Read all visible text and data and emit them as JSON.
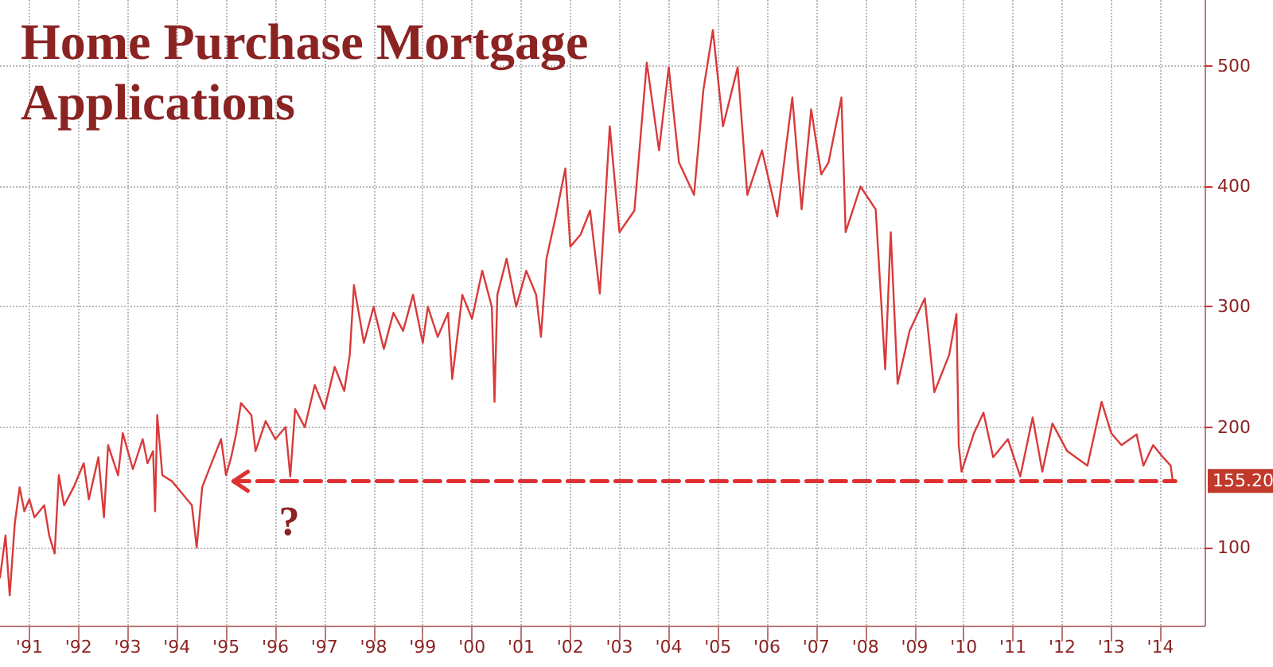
{
  "chart_data": {
    "type": "line",
    "title": "Home Purchase Mortgage Applications",
    "grid": true,
    "marker": "none",
    "xlim": [
      "1990-11-25",
      "2015-05-25"
    ],
    "ylim": [
      35,
      555
    ],
    "yticks": [
      100,
      200,
      300,
      400,
      500
    ],
    "xticks": [
      {
        "value": "1991-07-01",
        "label": "'91"
      },
      {
        "value": "1992-07-01",
        "label": "'92"
      },
      {
        "value": "1993-07-01",
        "label": "'93"
      },
      {
        "value": "1994-07-01",
        "label": "'94"
      },
      {
        "value": "1995-07-01",
        "label": "'95"
      },
      {
        "value": "1996-07-01",
        "label": "'96"
      },
      {
        "value": "1997-07-01",
        "label": "'97"
      },
      {
        "value": "1998-07-01",
        "label": "'98"
      },
      {
        "value": "1999-07-01",
        "label": "'99"
      },
      {
        "value": "2000-07-01",
        "label": "'00"
      },
      {
        "value": "2001-07-01",
        "label": "'01"
      },
      {
        "value": "2002-07-01",
        "label": "'02"
      },
      {
        "value": "2003-07-01",
        "label": "'03"
      },
      {
        "value": "2004-07-01",
        "label": "'04"
      },
      {
        "value": "2005-07-01",
        "label": "'05"
      },
      {
        "value": "2006-07-01",
        "label": "'06"
      },
      {
        "value": "2007-07-01",
        "label": "'07"
      },
      {
        "value": "2008-07-01",
        "label": "'08"
      },
      {
        "value": "2009-07-01",
        "label": "'09"
      },
      {
        "value": "2010-07-01",
        "label": "'10"
      },
      {
        "value": "2011-07-01",
        "label": "'11"
      },
      {
        "value": "2012-07-01",
        "label": "'12"
      },
      {
        "value": "2013-07-01",
        "label": "'13"
      },
      {
        "value": "2014-07-01",
        "label": "'14"
      }
    ],
    "annotations": [
      "?",
      {
        "text": "155.20",
        "x": "2014-10-01",
        "y": 155.2
      }
    ],
    "series": [
      {
        "color": "#d93a3a",
        "line_style": "solid",
        "x": [
          "1990-11-25",
          "1991-01-05",
          "1991-02-05",
          "1991-03-15",
          "1991-04-20",
          "1991-05-25",
          "1991-07-01",
          "1991-08-08",
          "1991-10-20",
          "1991-11-25",
          "1992-01-05",
          "1992-02-05",
          "1992-03-15",
          "1992-05-25",
          "1992-08-08",
          "1992-09-15",
          "1992-11-25",
          "1993-01-05",
          "1993-02-05",
          "1993-04-20",
          "1993-05-25",
          "1993-08-08",
          "1993-10-20",
          "1993-11-25",
          "1994-01-05",
          "1994-01-20",
          "1994-02-05",
          "1994-03-15",
          "1994-05-25",
          "1994-08-08",
          "1994-10-20",
          "1994-11-25",
          "1995-01-05",
          "1995-03-15",
          "1995-05-25",
          "1995-07-01",
          "1995-08-08",
          "1995-09-15",
          "1995-10-20",
          "1996-01-05",
          "1996-02-05",
          "1996-04-20",
          "1996-07-01",
          "1996-09-15",
          "1996-10-20",
          "1996-11-25",
          "1997-02-05",
          "1997-04-20",
          "1997-07-01",
          "1997-09-15",
          "1997-11-25",
          "1998-01-05",
          "1998-02-05",
          "1998-04-20",
          "1998-07-01",
          "1998-09-15",
          "1998-11-25",
          "1999-02-05",
          "1999-04-20",
          "1999-07-01",
          "1999-08-08",
          "1999-10-20",
          "2000-01-05",
          "2000-02-05",
          "2000-04-20",
          "2000-07-01",
          "2000-09-15",
          "2000-11-25",
          "2000-12-15",
          "2001-01-05",
          "2001-03-15",
          "2001-05-25",
          "2001-08-08",
          "2001-10-20",
          "2001-11-25",
          "2002-01-05",
          "2002-03-15",
          "2002-05-25",
          "2002-07-01",
          "2002-09-15",
          "2002-11-25",
          "2003-02-05",
          "2003-04-20",
          "2003-07-01",
          "2003-10-20",
          "2004-01-20",
          "2004-04-20",
          "2004-07-01",
          "2004-09-15",
          "2005-01-05",
          "2005-03-15",
          "2005-05-25",
          "2005-08-08",
          "2005-11-25",
          "2006-02-05",
          "2006-05-25",
          "2006-09-15",
          "2007-01-05",
          "2007-03-15",
          "2007-05-25",
          "2007-08-08",
          "2007-10-01",
          "2008-01-05",
          "2008-02-05",
          "2008-05-25",
          "2008-09-15",
          "2008-11-25",
          "2009-01-05",
          "2009-02-25",
          "2009-05-25",
          "2009-09-15",
          "2009-11-25",
          "2010-03-15",
          "2010-05-08",
          "2010-05-25",
          "2010-06-15",
          "2010-09-15",
          "2010-11-25",
          "2011-02-05",
          "2011-05-25",
          "2011-08-25",
          "2011-11-25",
          "2012-02-05",
          "2012-04-20",
          "2012-08-08",
          "2013-01-05",
          "2013-04-20",
          "2013-07-01",
          "2013-09-15",
          "2014-01-05",
          "2014-02-25",
          "2014-05-08",
          "2014-07-20",
          "2014-09-15",
          "2014-10-01"
        ],
        "values": [
          75,
          110,
          60,
          120,
          150,
          130,
          140,
          125,
          135,
          110,
          95,
          160,
          135,
          150,
          170,
          140,
          175,
          125,
          185,
          160,
          195,
          165,
          190,
          170,
          180,
          130,
          210,
          160,
          155,
          145,
          135,
          100,
          150,
          170,
          190,
          160,
          175,
          195,
          220,
          210,
          180,
          205,
          190,
          200,
          159,
          215,
          200,
          235,
          215,
          250,
          230,
          260,
          318,
          270,
          300,
          265,
          295,
          280,
          310,
          270,
          300,
          275,
          295,
          240,
          310,
          290,
          330,
          300,
          221,
          310,
          340,
          300,
          330,
          310,
          275,
          340,
          375,
          415,
          350,
          360,
          380,
          311,
          450,
          362,
          380,
          503,
          430,
          499,
          420,
          393,
          480,
          530,
          450,
          499,
          393,
          430,
          375,
          474,
          381,
          464,
          410,
          420,
          474,
          362,
          400,
          381,
          248,
          362,
          236,
          280,
          307,
          229,
          260,
          294,
          185,
          163,
          195,
          212,
          175,
          190,
          159,
          208,
          163,
          203,
          180,
          168,
          221,
          195,
          185,
          194,
          168,
          185,
          175,
          168,
          155
        ]
      },
      {
        "color": "#e03030",
        "line_style": "dashed",
        "x": [
          "1995-08-25",
          "2014-10-20"
        ],
        "values": [
          155,
          155
        ]
      }
    ]
  }
}
